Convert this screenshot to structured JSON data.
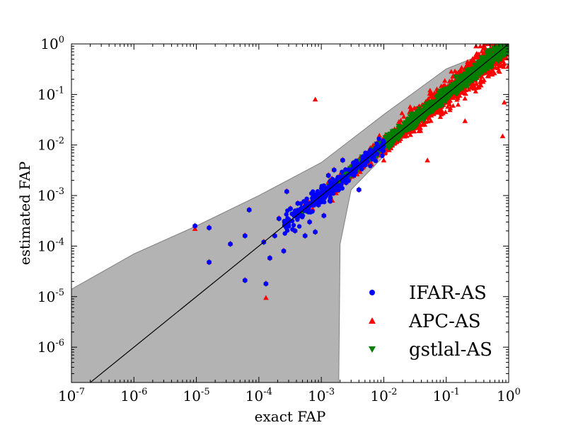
{
  "chart_data": {
    "type": "scatter",
    "title": "",
    "xlabel": "exact FAP",
    "ylabel": "estimated FAP",
    "xscale": "log",
    "yscale": "log",
    "xlim": [
      1e-07,
      1
    ],
    "ylim": [
      2e-07,
      1
    ],
    "x_tick_labels": [
      "10",
      "10",
      "10",
      "10",
      "10",
      "10",
      "10",
      "10"
    ],
    "x_tick_exponents": [
      "-7",
      "-6",
      "-5",
      "-4",
      "-3",
      "-2",
      "-1",
      "0"
    ],
    "x_tick_values": [
      1e-07,
      1e-06,
      1e-05,
      0.0001,
      0.001,
      0.01,
      0.1,
      1
    ],
    "y_tick_labels": [
      "10",
      "10",
      "10",
      "10",
      "10",
      "10",
      "10"
    ],
    "y_tick_exponents": [
      "-6",
      "-5",
      "-4",
      "-3",
      "-2",
      "-1",
      "0"
    ],
    "y_tick_values": [
      1e-06,
      1e-05,
      0.0001,
      0.001,
      0.01,
      0.1,
      1
    ],
    "grid": false,
    "legend_position": "bottom-right",
    "reference_line": {
      "x": [
        1e-07,
        1
      ],
      "y": [
        1e-07,
        1
      ],
      "color": "#000000"
    },
    "confidence_band": {
      "color": "#b3b3b3",
      "upper": [
        [
          1e-07,
          1.4e-05
        ],
        [
          1e-06,
          7e-05
        ],
        [
          1e-05,
          0.00025
        ],
        [
          0.0001,
          0.001
        ],
        [
          0.001,
          0.0045
        ],
        [
          0.01,
          0.04
        ],
        [
          0.1,
          0.32
        ],
        [
          1,
          1
        ]
      ],
      "lower": [
        [
          1,
          1
        ],
        [
          0.1,
          0.085
        ],
        [
          0.01,
          0.006
        ],
        [
          0.003,
          0.0013
        ],
        [
          0.002,
          0.00011
        ],
        [
          0.0019,
          2e-07
        ],
        [
          1e-07,
          2e-07
        ]
      ]
    },
    "series": [
      {
        "name": "IFAR-AS",
        "marker": "circle",
        "color": "#0000ff"
      },
      {
        "name": "APC-AS",
        "marker": "triangle-up",
        "color": "#ff0000"
      },
      {
        "name": "gstlal-AS",
        "marker": "triangle-down",
        "color": "#007f00"
      }
    ],
    "isolated_points": [
      [
        9.5e-06,
        0.00025
      ],
      [
        1.6e-05,
        0.00023
      ],
      [
        1.6e-05,
        4.8e-05
      ],
      [
        3.5e-05,
        0.00011
      ],
      [
        6e-05,
        0.00016
      ],
      [
        7e-05,
        0.00052
      ],
      [
        6e-05,
        2.1e-05
      ],
      [
        0.00012,
        0.00012
      ],
      [
        0.00013,
        1.8e-05
      ],
      [
        0.00015,
        5.8e-05
      ],
      [
        0.00018,
        0.00016
      ],
      [
        0.00021,
        0.00035
      ],
      [
        0.00025,
        8e-05
      ],
      [
        0.00032,
        0.00055
      ],
      [
        0.00038,
        0.0002
      ],
      [
        0.00045,
        0.00042
      ],
      [
        0.00055,
        0.00016
      ],
      [
        0.00065,
        0.0003
      ],
      [
        0.0008,
        0.00019
      ],
      [
        0.0009,
        0.00065
      ],
      [
        0.0011,
        0.0004
      ],
      [
        0.0013,
        0.0025
      ],
      [
        0.0016,
        0.0032
      ],
      [
        0.0022,
        0.005
      ],
      [
        0.003,
        0.0028
      ],
      [
        0.004,
        0.0013
      ],
      [
        0.005,
        0.004
      ],
      [
        0.00028,
        0.0012
      ],
      [
        0.00042,
        0.0007
      ],
      [
        0.0007,
        0.0011
      ],
      [
        0.0014,
        0.0009
      ],
      [
        0.0025,
        0.0018
      ]
    ],
    "apc_outliers": [
      [
        9.5e-06,
        0.00022
      ],
      [
        0.00013,
        9.5e-06
      ],
      [
        0.0008,
        0.08
      ],
      [
        0.0015,
        0.0008
      ],
      [
        0.3,
        0.9
      ],
      [
        0.35,
        0.9
      ],
      [
        0.4,
        0.95
      ],
      [
        0.8,
        0.015
      ],
      [
        0.85,
        0.07
      ],
      [
        0.2,
        0.03
      ],
      [
        0.05,
        0.005
      ],
      [
        0.01,
        0.005
      ]
    ]
  }
}
